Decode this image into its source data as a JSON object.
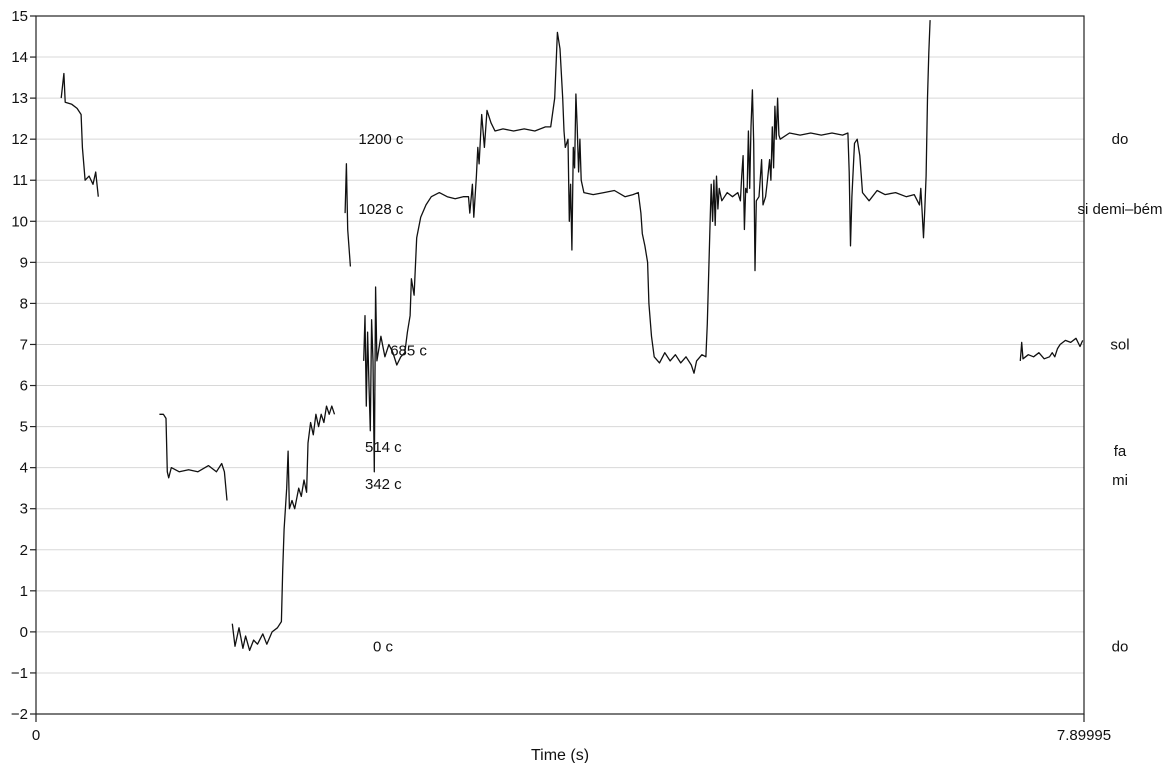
{
  "chart_data": {
    "type": "line",
    "xlabel": "Time (s)",
    "xlim": [
      0,
      7.89995
    ],
    "x_tick_labels": [
      "0",
      "7.89995"
    ],
    "ylim": [
      -2,
      15
    ],
    "y_ticks": [
      -2,
      -1,
      0,
      1,
      2,
      3,
      4,
      5,
      6,
      7,
      8,
      9,
      10,
      11,
      12,
      13,
      14,
      15
    ],
    "y_tick_labels": [
      "−2",
      "−1",
      "0",
      "1",
      "2",
      "3",
      "4",
      "5",
      "6",
      "7",
      "8",
      "9",
      "10",
      "11",
      "12",
      "13",
      "14",
      "15"
    ],
    "grid": true,
    "line_color": "#111111",
    "cent_annotations": [
      {
        "text": "1200 c",
        "t": 2.43,
        "y": 12.0
      },
      {
        "text": "1028 c",
        "t": 2.43,
        "y": 10.3
      },
      {
        "text": "685 c",
        "t": 2.67,
        "y": 6.85
      },
      {
        "text": "514 c",
        "t": 2.48,
        "y": 4.5
      },
      {
        "text": "342 c",
        "t": 2.48,
        "y": 3.6
      },
      {
        "text": "0 c",
        "t": 2.54,
        "y": -0.35
      }
    ],
    "note_labels": [
      {
        "text": "do",
        "y": 12.0
      },
      {
        "text": "si demi–bém",
        "y": 10.3
      },
      {
        "text": "sol",
        "y": 7.0
      },
      {
        "text": "fa",
        "y": 4.4
      },
      {
        "text": "mi",
        "y": 3.7
      },
      {
        "text": "do",
        "y": -0.35
      }
    ],
    "series": [
      {
        "points": [
          [
            0.19,
            13.0
          ],
          [
            0.21,
            13.6
          ],
          [
            0.22,
            12.9
          ],
          [
            0.27,
            12.85
          ],
          [
            0.31,
            12.75
          ],
          [
            0.34,
            12.6
          ],
          [
            0.35,
            11.8
          ],
          [
            0.37,
            11.0
          ],
          [
            0.4,
            11.1
          ],
          [
            0.43,
            10.9
          ],
          [
            0.45,
            11.2
          ],
          [
            0.47,
            10.6
          ]
        ]
      },
      {
        "points": [
          [
            0.93,
            5.3
          ],
          [
            0.96,
            5.3
          ],
          [
            0.98,
            5.2
          ],
          [
            0.99,
            3.9
          ],
          [
            1.0,
            3.75
          ],
          [
            1.02,
            4.0
          ],
          [
            1.08,
            3.9
          ],
          [
            1.15,
            3.95
          ],
          [
            1.22,
            3.9
          ],
          [
            1.3,
            4.05
          ],
          [
            1.36,
            3.9
          ],
          [
            1.4,
            4.1
          ],
          [
            1.42,
            3.9
          ],
          [
            1.44,
            3.2
          ]
        ]
      },
      {
        "points": [
          [
            1.48,
            0.2
          ],
          [
            1.5,
            -0.35
          ],
          [
            1.53,
            0.1
          ],
          [
            1.56,
            -0.4
          ],
          [
            1.58,
            -0.1
          ],
          [
            1.61,
            -0.45
          ],
          [
            1.64,
            -0.2
          ],
          [
            1.67,
            -0.3
          ],
          [
            1.71,
            -0.05
          ],
          [
            1.74,
            -0.3
          ],
          [
            1.78,
            0.0
          ],
          [
            1.82,
            0.1
          ],
          [
            1.85,
            0.25
          ],
          [
            1.86,
            1.5
          ],
          [
            1.87,
            2.5
          ],
          [
            1.89,
            3.5
          ],
          [
            1.9,
            4.4
          ],
          [
            1.91,
            3.0
          ],
          [
            1.93,
            3.2
          ],
          [
            1.95,
            3.0
          ],
          [
            1.98,
            3.5
          ],
          [
            2.0,
            3.3
          ],
          [
            2.02,
            3.7
          ],
          [
            2.04,
            3.4
          ],
          [
            2.05,
            4.6
          ],
          [
            2.07,
            5.1
          ],
          [
            2.09,
            4.8
          ],
          [
            2.11,
            5.3
          ],
          [
            2.13,
            5.0
          ],
          [
            2.15,
            5.3
          ],
          [
            2.17,
            5.1
          ],
          [
            2.19,
            5.5
          ],
          [
            2.21,
            5.3
          ],
          [
            2.23,
            5.5
          ],
          [
            2.25,
            5.3
          ]
        ]
      },
      {
        "points": [
          [
            2.33,
            10.2
          ],
          [
            2.34,
            11.4
          ],
          [
            2.35,
            9.8
          ],
          [
            2.37,
            8.9
          ]
        ]
      },
      {
        "points": [
          [
            2.47,
            6.6
          ],
          [
            2.48,
            7.7
          ],
          [
            2.49,
            5.5
          ],
          [
            2.5,
            7.3
          ],
          [
            2.51,
            6.0
          ],
          [
            2.52,
            4.9
          ],
          [
            2.53,
            7.6
          ],
          [
            2.54,
            6.6
          ],
          [
            2.55,
            3.9
          ],
          [
            2.56,
            8.4
          ],
          [
            2.57,
            6.6
          ],
          [
            2.6,
            7.2
          ],
          [
            2.63,
            6.7
          ],
          [
            2.66,
            7.0
          ],
          [
            2.69,
            6.8
          ],
          [
            2.72,
            6.5
          ],
          [
            2.75,
            6.7
          ],
          [
            2.78,
            6.8
          ],
          [
            2.8,
            7.3
          ],
          [
            2.82,
            7.7
          ],
          [
            2.83,
            8.6
          ],
          [
            2.85,
            8.2
          ],
          [
            2.87,
            9.6
          ],
          [
            2.9,
            10.1
          ],
          [
            2.94,
            10.4
          ],
          [
            2.98,
            10.6
          ],
          [
            3.04,
            10.7
          ],
          [
            3.1,
            10.6
          ],
          [
            3.16,
            10.55
          ],
          [
            3.22,
            10.6
          ],
          [
            3.26,
            10.6
          ],
          [
            3.27,
            10.2
          ],
          [
            3.29,
            10.9
          ],
          [
            3.3,
            10.1
          ],
          [
            3.32,
            11.1
          ],
          [
            3.33,
            11.8
          ],
          [
            3.34,
            11.4
          ],
          [
            3.36,
            12.6
          ],
          [
            3.38,
            11.8
          ],
          [
            3.4,
            12.7
          ],
          [
            3.43,
            12.4
          ],
          [
            3.46,
            12.2
          ],
          [
            3.52,
            12.25
          ],
          [
            3.6,
            12.2
          ],
          [
            3.68,
            12.25
          ],
          [
            3.76,
            12.2
          ],
          [
            3.84,
            12.3
          ],
          [
            3.88,
            12.3
          ],
          [
            3.91,
            13.0
          ],
          [
            3.93,
            14.6
          ],
          [
            3.95,
            14.2
          ],
          [
            3.97,
            13.0
          ],
          [
            3.98,
            12.2
          ],
          [
            3.99,
            11.8
          ],
          [
            4.01,
            12.0
          ],
          [
            4.02,
            10.0
          ],
          [
            4.03,
            10.9
          ],
          [
            4.04,
            9.3
          ],
          [
            4.05,
            11.8
          ],
          [
            4.06,
            11.3
          ],
          [
            4.07,
            13.1
          ],
          [
            4.08,
            12.3
          ],
          [
            4.09,
            11.2
          ],
          [
            4.1,
            12.0
          ],
          [
            4.11,
            11.0
          ],
          [
            4.13,
            10.7
          ],
          [
            4.2,
            10.65
          ],
          [
            4.28,
            10.7
          ],
          [
            4.36,
            10.75
          ],
          [
            4.44,
            10.6
          ],
          [
            4.5,
            10.65
          ],
          [
            4.54,
            10.7
          ],
          [
            4.56,
            10.2
          ],
          [
            4.57,
            9.7
          ],
          [
            4.59,
            9.4
          ],
          [
            4.61,
            9.0
          ],
          [
            4.62,
            8.0
          ],
          [
            4.64,
            7.2
          ],
          [
            4.66,
            6.7
          ],
          [
            4.7,
            6.55
          ],
          [
            4.74,
            6.8
          ],
          [
            4.78,
            6.6
          ],
          [
            4.82,
            6.75
          ],
          [
            4.86,
            6.55
          ],
          [
            4.9,
            6.7
          ],
          [
            4.94,
            6.5
          ],
          [
            4.96,
            6.3
          ],
          [
            4.98,
            6.6
          ],
          [
            5.02,
            6.75
          ],
          [
            5.05,
            6.7
          ],
          [
            5.06,
            7.5
          ],
          [
            5.08,
            9.8
          ],
          [
            5.09,
            10.9
          ],
          [
            5.1,
            10.0
          ],
          [
            5.11,
            11.0
          ],
          [
            5.12,
            9.9
          ],
          [
            5.13,
            11.1
          ],
          [
            5.14,
            10.3
          ],
          [
            5.15,
            10.8
          ],
          [
            5.17,
            10.5
          ],
          [
            5.21,
            10.7
          ],
          [
            5.25,
            10.6
          ],
          [
            5.29,
            10.7
          ],
          [
            5.31,
            10.5
          ],
          [
            5.32,
            11.1
          ],
          [
            5.33,
            11.6
          ],
          [
            5.34,
            9.8
          ],
          [
            5.35,
            10.8
          ],
          [
            5.36,
            10.7
          ],
          [
            5.37,
            12.2
          ],
          [
            5.38,
            10.8
          ],
          [
            5.39,
            12.3
          ],
          [
            5.4,
            13.2
          ],
          [
            5.41,
            11.9
          ],
          [
            5.42,
            8.8
          ],
          [
            5.43,
            10.5
          ],
          [
            5.45,
            10.6
          ],
          [
            5.47,
            11.5
          ],
          [
            5.48,
            10.4
          ],
          [
            5.5,
            10.6
          ],
          [
            5.51,
            10.9
          ],
          [
            5.53,
            11.5
          ],
          [
            5.54,
            11.0
          ],
          [
            5.55,
            12.3
          ],
          [
            5.56,
            11.3
          ],
          [
            5.57,
            12.8
          ],
          [
            5.58,
            12.0
          ],
          [
            5.59,
            13.0
          ],
          [
            5.6,
            12.1
          ],
          [
            5.61,
            12.0
          ],
          [
            5.68,
            12.15
          ],
          [
            5.76,
            12.1
          ],
          [
            5.84,
            12.15
          ],
          [
            5.92,
            12.1
          ],
          [
            6.0,
            12.15
          ],
          [
            6.08,
            12.1
          ],
          [
            6.12,
            12.15
          ],
          [
            6.13,
            11.2
          ],
          [
            6.14,
            9.4
          ],
          [
            6.15,
            10.6
          ],
          [
            6.17,
            11.9
          ],
          [
            6.19,
            12.0
          ],
          [
            6.21,
            11.6
          ],
          [
            6.23,
            10.7
          ],
          [
            6.28,
            10.5
          ],
          [
            6.34,
            10.75
          ],
          [
            6.4,
            10.65
          ],
          [
            6.48,
            10.7
          ],
          [
            6.56,
            10.6
          ],
          [
            6.62,
            10.65
          ],
          [
            6.66,
            10.4
          ],
          [
            6.67,
            10.8
          ],
          [
            6.68,
            10.2
          ],
          [
            6.69,
            9.6
          ],
          [
            6.7,
            10.3
          ],
          [
            6.71,
            11.1
          ],
          [
            6.72,
            13.0
          ],
          [
            6.73,
            14.1
          ],
          [
            6.74,
            14.9
          ]
        ]
      },
      {
        "points": [
          [
            7.42,
            6.6
          ],
          [
            7.43,
            7.05
          ],
          [
            7.44,
            6.65
          ],
          [
            7.48,
            6.75
          ],
          [
            7.52,
            6.7
          ],
          [
            7.56,
            6.8
          ],
          [
            7.6,
            6.65
          ],
          [
            7.64,
            6.7
          ],
          [
            7.66,
            6.8
          ],
          [
            7.68,
            6.7
          ],
          [
            7.7,
            6.9
          ],
          [
            7.72,
            7.0
          ],
          [
            7.76,
            7.1
          ],
          [
            7.8,
            7.05
          ],
          [
            7.84,
            7.15
          ],
          [
            7.87,
            6.95
          ],
          [
            7.89,
            7.1
          ]
        ]
      }
    ]
  }
}
